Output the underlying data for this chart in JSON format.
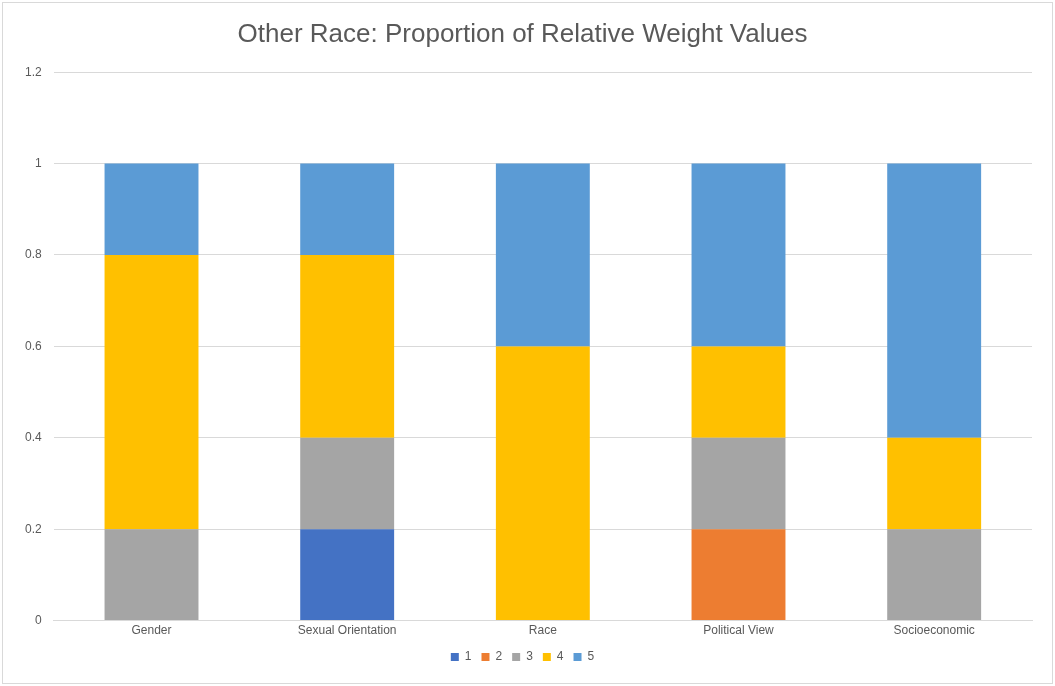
{
  "chart_data": {
    "type": "bar",
    "title": "Other Race: Proportion of Relative Weight Values",
    "categories": [
      "Gender",
      "Sexual Orientation",
      "Race",
      "Political View",
      "Socioeconomic"
    ],
    "stacked": true,
    "series": [
      {
        "name": "1",
        "color": "#4472c4",
        "values": [
          0,
          0.2,
          0,
          0,
          0
        ]
      },
      {
        "name": "2",
        "color": "#ed7d31",
        "values": [
          0,
          0,
          0,
          0.2,
          0
        ]
      },
      {
        "name": "3",
        "color": "#a5a5a5",
        "values": [
          0.2,
          0.2,
          0,
          0.2,
          0.2
        ]
      },
      {
        "name": "4",
        "color": "#ffc000",
        "values": [
          0.6,
          0.4,
          0.6,
          0.2,
          0.2
        ]
      },
      {
        "name": "5",
        "color": "#5b9bd5",
        "values": [
          0.2,
          0.2,
          0.4,
          0.4,
          0.6
        ]
      }
    ],
    "ylim": [
      0,
      1.2
    ],
    "yticks": [
      0,
      0.2,
      0.4,
      0.6,
      0.8,
      1,
      1.2
    ],
    "grid": "y",
    "legend": "bottom"
  }
}
